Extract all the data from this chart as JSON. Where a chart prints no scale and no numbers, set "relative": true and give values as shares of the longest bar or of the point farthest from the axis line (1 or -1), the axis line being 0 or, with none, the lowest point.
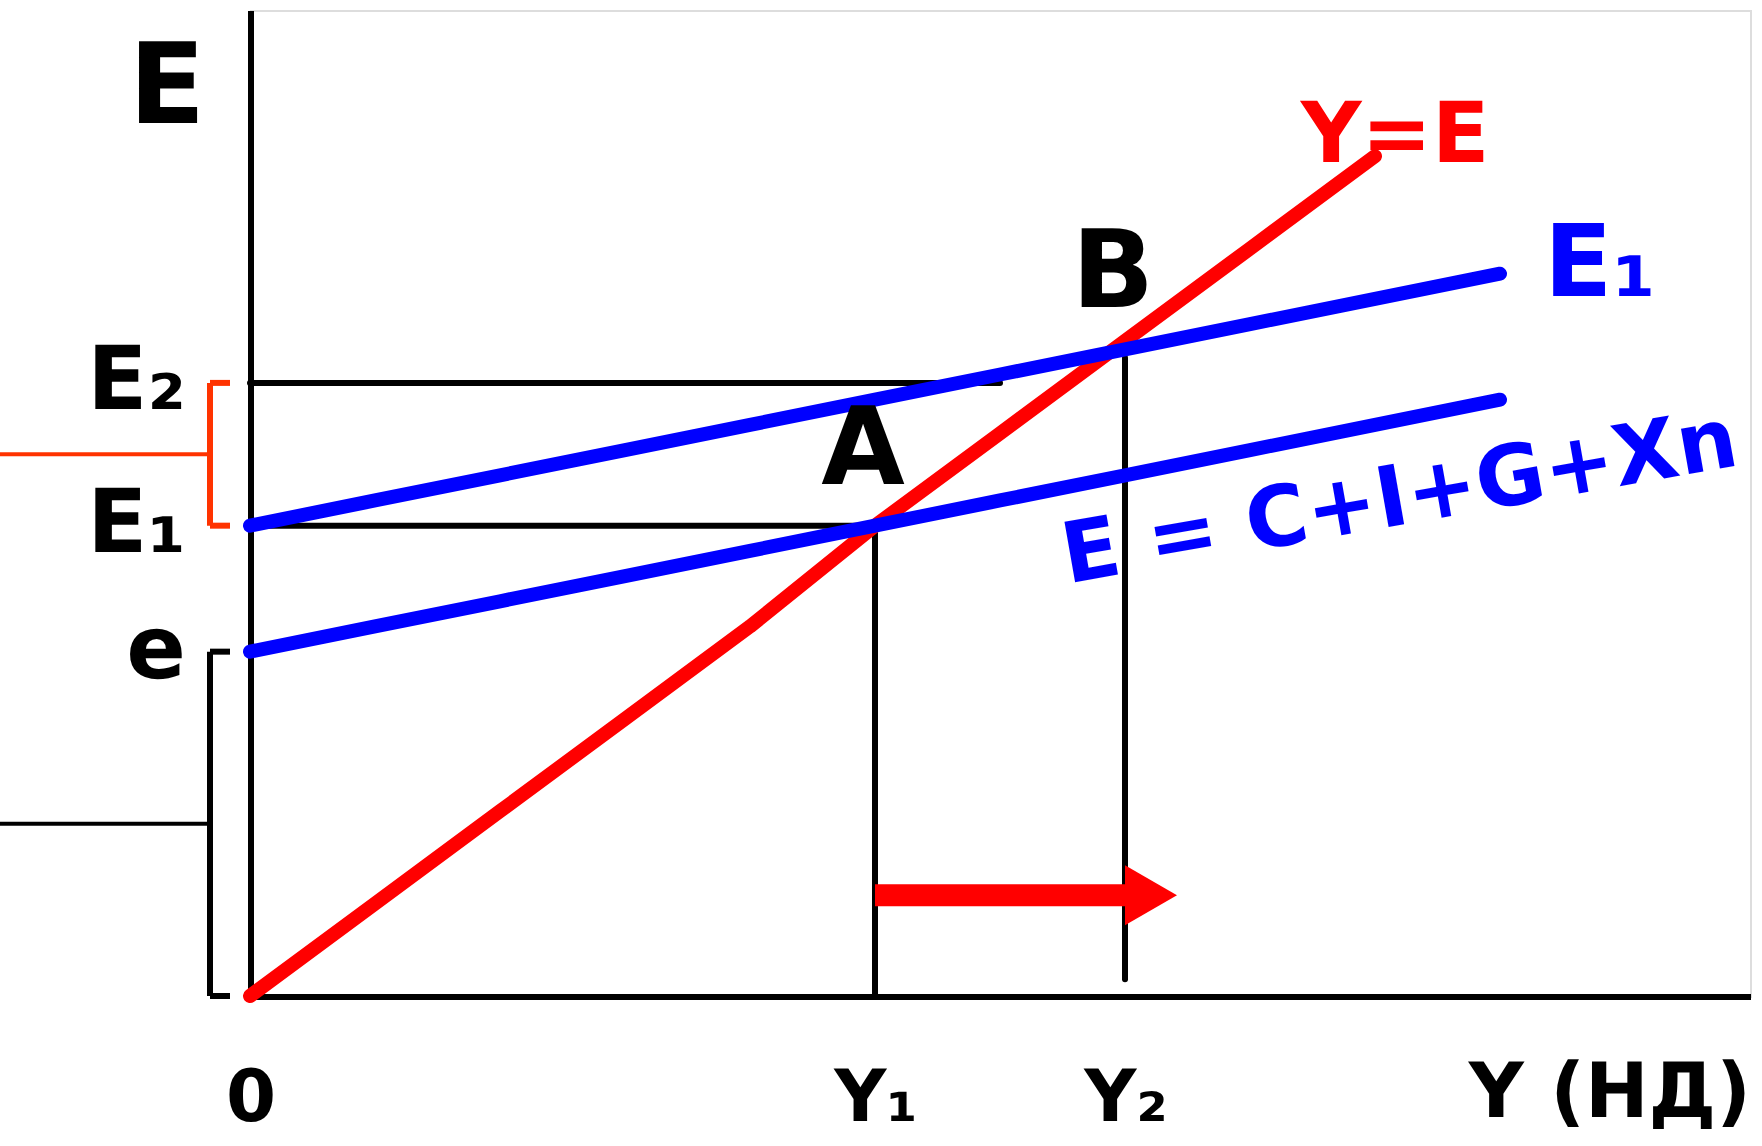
{
  "chart_data": {
    "type": "line",
    "relative": true,
    "xlabel": "Y (НД)",
    "ylabel": "E",
    "legend": false,
    "categories": [
      "0",
      null,
      null,
      null,
      null,
      "Y₁",
      null,
      "Y₂",
      null,
      null,
      null,
      null,
      null
    ],
    "series": [
      {
        "name": "Y=E",
        "color": "#ff0000",
        "values": [
          0,
          0.11,
          0.22,
          0.33,
          0.44,
          0.56,
          0.67,
          0.78,
          0.89,
          1,
          null,
          null,
          null
        ]
      },
      {
        "name": "E₁",
        "color": "#0000ff",
        "values": [
          0.56,
          0.59,
          0.62,
          0.65,
          0.68,
          0.71,
          0.74,
          0.77,
          0.8,
          0.83,
          0.86,
          null,
          null
        ]
      },
      {
        "name": "E = C+I+G+Xn",
        "color": "#0000ff",
        "values": [
          0.41,
          0.44,
          0.47,
          0.5,
          0.53,
          0.56,
          0.59,
          0.62,
          0.65,
          0.68,
          0.71,
          null,
          null
        ]
      },
      {
        "color": "#000000",
        "values": [
          0.56,
          0.56,
          0.56,
          0.56,
          0.56,
          0.56,
          null,
          null,
          null,
          null,
          null,
          null,
          null
        ]
      },
      {
        "color": "#000000",
        "values": [
          0.73,
          0.73,
          0.73,
          0.73,
          0.73,
          0.73,
          0.73,
          null,
          null,
          null,
          null,
          null,
          null
        ]
      },
      {
        "color": "#000000",
        "x": [
          "Y₁",
          "Y₁"
        ],
        "values": [
          0,
          0.56
        ]
      },
      {
        "color": "#000000",
        "x": [
          "Y₂",
          "Y₂"
        ],
        "values": [
          0.02,
          0.76
        ]
      },
      {
        "color": "#ff0000",
        "x": [
          "Y₁",
          "Y₂"
        ],
        "values": [
          0.12,
          0.12
        ]
      },
      {
        "type": "scatter",
        "color": "#ff0000",
        "x": [
          "Y₂"
        ],
        "values": [
          0.12
        ],
        "marker": "triangle"
      }
    ],
    "annotations": [
      {
        "text": "A",
        "x": "Y₁",
        "y": 0.56
      },
      {
        "text": "B",
        "x": "Y₂",
        "y": 0.77
      },
      {
        "text": "E₂",
        "x": "0",
        "y": 0.73
      },
      {
        "text": "E₁",
        "x": "0",
        "y": 0.56
      },
      {
        "text": "e",
        "x": "0",
        "y": 0.41
      }
    ]
  }
}
